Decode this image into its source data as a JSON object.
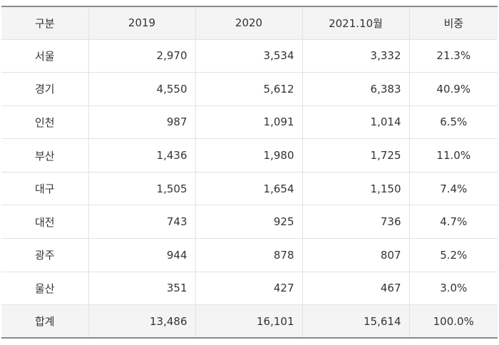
{
  "table": {
    "headers": [
      "구분",
      "2019",
      "2020",
      "2021.10월",
      "비중"
    ],
    "rows": [
      {
        "region": "서울",
        "v2019": "2,970",
        "v2020": "3,534",
        "v2021": "3,332",
        "share": "21.3%"
      },
      {
        "region": "경기",
        "v2019": "4,550",
        "v2020": "5,612",
        "v2021": "6,383",
        "share": "40.9%"
      },
      {
        "region": "인천",
        "v2019": "987",
        "v2020": "1,091",
        "v2021": "1,014",
        "share": "6.5%"
      },
      {
        "region": "부산",
        "v2019": "1,436",
        "v2020": "1,980",
        "v2021": "1,725",
        "share": "11.0%"
      },
      {
        "region": "대구",
        "v2019": "1,505",
        "v2020": "1,654",
        "v2021": "1,150",
        "share": "7.4%"
      },
      {
        "region": "대전",
        "v2019": "743",
        "v2020": "925",
        "v2021": "736",
        "share": "4.7%"
      },
      {
        "region": "광주",
        "v2019": "944",
        "v2020": "878",
        "v2021": "807",
        "share": "5.2%"
      },
      {
        "region": "울산",
        "v2019": "351",
        "v2020": "427",
        "v2021": "467",
        "share": "3.0%"
      }
    ],
    "total": {
      "region": "합계",
      "v2019": "13,486",
      "v2020": "16,101",
      "v2021": "15,614",
      "share": "100.0%"
    }
  }
}
